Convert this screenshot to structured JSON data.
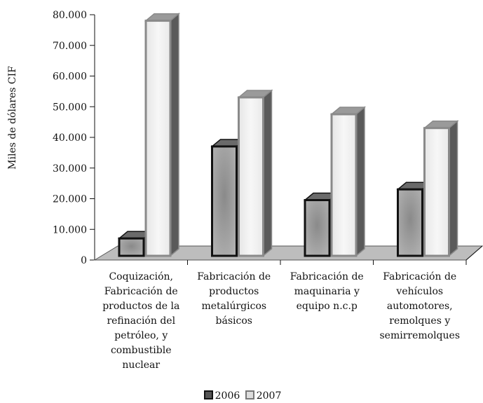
{
  "chart_data": {
    "type": "bar",
    "title": "",
    "xlabel": "",
    "ylabel": "Miles de dólares CIF",
    "ylim": [
      0,
      80000
    ],
    "y_ticks": [
      "0",
      "10.000",
      "20.000",
      "30.000",
      "40.000",
      "50.000",
      "60.000",
      "70.000",
      "80.000"
    ],
    "categories": [
      "Coquización, Fabricación de productos de la refinación del petróleo, y combustible nuclear",
      "Fabricación de productos metalúrgicos básicos",
      "Fabricación de maquinaria y equipo n.c.p",
      "Fabricación de vehículos automotores, remolques y semirremolques"
    ],
    "category_lines": [
      [
        "Coquización,",
        "Fabricación de",
        "productos de la",
        "refinación del",
        "petróleo, y",
        "combustible",
        "nuclear"
      ],
      [
        "Fabricación de",
        "productos",
        "metalúrgicos",
        "básicos"
      ],
      [
        "Fabricación de",
        "maquinaria y",
        "equipo n.c.p"
      ],
      [
        "Fabricación de",
        "vehículos",
        "automotores,",
        "remolques y",
        "semirremolques"
      ]
    ],
    "series": [
      {
        "name": "2006",
        "values": [
          7500,
          37500,
          20000,
          23500
        ],
        "color": "#8a8a8a"
      },
      {
        "name": "2007",
        "values": [
          78500,
          53500,
          48000,
          43500
        ],
        "color": "#f2f2f2"
      }
    ],
    "grid": false,
    "legend": "bottom"
  }
}
